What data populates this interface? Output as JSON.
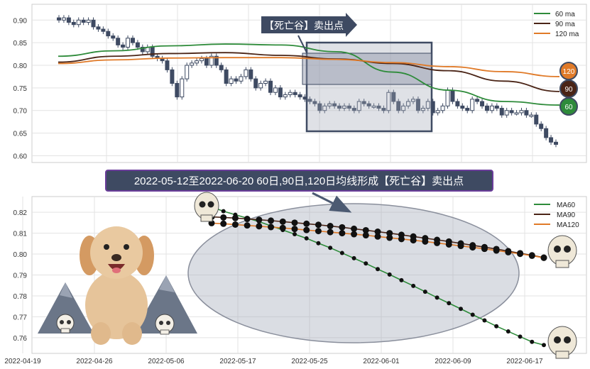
{
  "chart_data": [
    {
      "type": "candlestick",
      "title": "",
      "xlabel": "",
      "ylabel": "",
      "ylim": [
        0.585,
        0.935
      ],
      "yticks": [
        "0.90",
        "0.85",
        "0.80",
        "0.75",
        "0.70",
        "0.65",
        "0.60"
      ],
      "grid": true,
      "legend_position": "top-right",
      "legend": [
        "60 ma",
        "90 ma",
        "120 ma"
      ],
      "series": [
        {
          "name": "60 ma",
          "color": "#2e8b3a",
          "values": [
            0.82,
            0.832,
            0.843,
            0.847,
            0.845,
            0.83,
            0.785,
            0.745,
            0.72,
            0.712
          ]
        },
        {
          "name": "90 ma",
          "color": "#4a2416",
          "values": [
            0.807,
            0.82,
            0.826,
            0.828,
            0.822,
            0.814,
            0.804,
            0.788,
            0.765,
            0.742
          ]
        },
        {
          "name": "120 ma",
          "color": "#e07a28",
          "values": [
            0.804,
            0.812,
            0.816,
            0.817,
            0.817,
            0.813,
            0.806,
            0.797,
            0.786,
            0.775
          ]
        }
      ],
      "candle_closes": [
        0.9,
        0.905,
        0.895,
        0.89,
        0.9,
        0.895,
        0.9,
        0.885,
        0.88,
        0.875,
        0.865,
        0.86,
        0.845,
        0.84,
        0.86,
        0.85,
        0.84,
        0.83,
        0.84,
        0.82,
        0.815,
        0.81,
        0.79,
        0.76,
        0.73,
        0.77,
        0.8,
        0.805,
        0.81,
        0.815,
        0.8,
        0.82,
        0.8,
        0.79,
        0.76,
        0.77,
        0.765,
        0.775,
        0.79,
        0.77,
        0.75,
        0.76,
        0.765,
        0.74,
        0.75,
        0.73,
        0.735,
        0.74,
        0.735,
        0.73,
        0.725,
        0.72,
        0.715,
        0.7,
        0.71,
        0.715,
        0.71,
        0.705,
        0.71,
        0.705,
        0.7,
        0.72,
        0.715,
        0.71,
        0.71,
        0.705,
        0.7,
        0.74,
        0.72,
        0.7,
        0.71,
        0.72,
        0.725,
        0.7,
        0.705,
        0.72,
        0.695,
        0.7,
        0.71,
        0.745,
        0.72,
        0.71,
        0.705,
        0.7,
        0.725,
        0.72,
        0.71,
        0.7,
        0.71,
        0.705,
        0.69,
        0.7,
        0.695,
        0.695,
        0.7,
        0.69,
        0.69,
        0.67,
        0.66,
        0.64,
        0.63,
        0.625
      ],
      "annotation": "【死亡谷】卖出点",
      "end_labels": [
        "120",
        "90",
        "60"
      ]
    },
    {
      "type": "line",
      "title": "2022-05-12至2022-06-20 60日,90日,120日均线形成【死亡谷】卖出点",
      "xlabel": "",
      "ylabel": "",
      "ylim": [
        0.7525,
        0.8275
      ],
      "yticks": [
        "0.82",
        "0.81",
        "0.80",
        "0.79",
        "0.78",
        "0.77",
        "0.76"
      ],
      "x_tick_labels": [
        "2022-04-19",
        "2022-04-26",
        "2022-05-06",
        "2022-05-17",
        "2022-05-25",
        "2022-06-01",
        "2022-06-09",
        "2022-06-17"
      ],
      "grid": true,
      "legend_position": "top-right",
      "series": [
        {
          "name": "MA60",
          "color": "#2e8b3a",
          "values": [
            0.8225,
            0.8205,
            0.8188,
            0.8172,
            0.8155,
            0.8135,
            0.8115,
            0.8095,
            0.8075,
            0.8052,
            0.803,
            0.8005,
            0.798,
            0.7955,
            0.7928,
            0.7902,
            0.7875,
            0.7848,
            0.782,
            0.7792,
            0.7765,
            0.7738,
            0.771,
            0.7683,
            0.7655,
            0.763,
            0.7605,
            0.758,
            0.7565
          ]
        },
        {
          "name": "MA90",
          "color": "#4a2416",
          "values": [
            0.8178,
            0.8175,
            0.8172,
            0.8168,
            0.8164,
            0.816,
            0.8155,
            0.815,
            0.8145,
            0.814,
            0.8134,
            0.8128,
            0.8121,
            0.8114,
            0.8107,
            0.81,
            0.8092,
            0.8084,
            0.8076,
            0.8068,
            0.806,
            0.8051,
            0.8042,
            0.8033,
            0.8024,
            0.8014,
            0.8004,
            0.7994,
            0.7983
          ]
        },
        {
          "name": "MA120",
          "color": "#e07a28",
          "values": [
            0.8148,
            0.8145,
            0.8141,
            0.8137,
            0.8133,
            0.8129,
            0.8125,
            0.812,
            0.8115,
            0.811,
            0.8105,
            0.81,
            0.8095,
            0.809,
            0.8084,
            0.8078,
            0.8072,
            0.8066,
            0.806,
            0.8053,
            0.8046,
            0.8039,
            0.8032,
            0.8025,
            0.8017,
            0.8009,
            0.8001,
            0.7992,
            0.7982
          ]
        }
      ]
    }
  ]
}
